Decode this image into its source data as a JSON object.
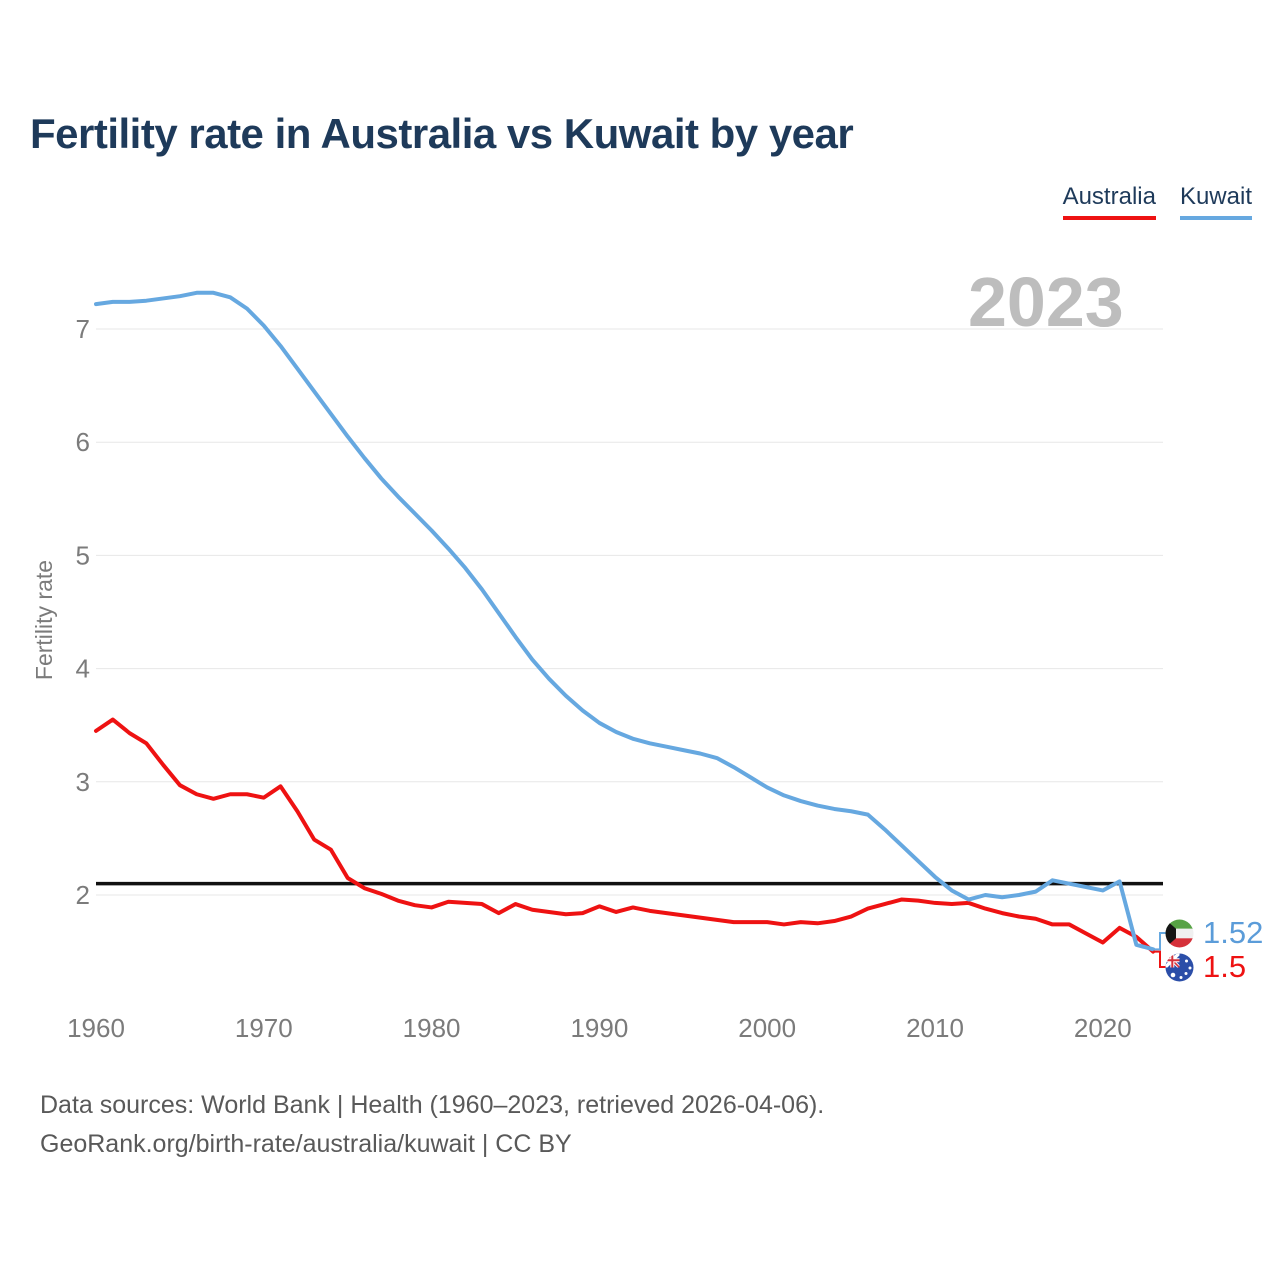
{
  "title": "Fertility rate in Australia vs Kuwait by year",
  "legend": {
    "items": [
      {
        "label": "Australia",
        "color": "#ee1212"
      },
      {
        "label": "Kuwait",
        "color": "#66a8e0"
      }
    ]
  },
  "watermark": "2023",
  "footer": {
    "line1": "Data sources: World Bank | Health (1960–2023, retrieved 2026-04-06).",
    "line2": "GeoRank.org/birth-rate/australia/kuwait | CC BY"
  },
  "chart_data": {
    "type": "line",
    "title": "Fertility rate in Australia vs Kuwait by year",
    "xlabel": "",
    "ylabel": "Fertility rate",
    "grid": true,
    "legend_position": "top-right",
    "ylim": [
      1.3,
      7.6
    ],
    "yticks": [
      2,
      3,
      4,
      5,
      6,
      7
    ],
    "xticks": [
      1960,
      1970,
      1980,
      1990,
      2000,
      2010,
      2020
    ],
    "reference_line": {
      "value": 2.1,
      "color": "#111111"
    },
    "x": [
      1960,
      1961,
      1962,
      1963,
      1964,
      1965,
      1966,
      1967,
      1968,
      1969,
      1970,
      1971,
      1972,
      1973,
      1974,
      1975,
      1976,
      1977,
      1978,
      1979,
      1980,
      1981,
      1982,
      1983,
      1984,
      1985,
      1986,
      1987,
      1988,
      1989,
      1990,
      1991,
      1992,
      1993,
      1994,
      1995,
      1996,
      1997,
      1998,
      1999,
      2000,
      2001,
      2002,
      2003,
      2004,
      2005,
      2006,
      2007,
      2008,
      2009,
      2010,
      2011,
      2012,
      2013,
      2014,
      2015,
      2016,
      2017,
      2018,
      2019,
      2020,
      2021,
      2022,
      2023
    ],
    "series": [
      {
        "name": "Australia",
        "color": "#ee1212",
        "values": [
          3.45,
          3.55,
          3.43,
          3.34,
          3.15,
          2.97,
          2.89,
          2.85,
          2.89,
          2.89,
          2.86,
          2.96,
          2.74,
          2.49,
          2.4,
          2.15,
          2.06,
          2.01,
          1.95,
          1.91,
          1.89,
          1.94,
          1.93,
          1.92,
          1.84,
          1.92,
          1.87,
          1.85,
          1.83,
          1.84,
          1.9,
          1.85,
          1.89,
          1.86,
          1.84,
          1.82,
          1.8,
          1.78,
          1.76,
          1.76,
          1.76,
          1.74,
          1.76,
          1.75,
          1.77,
          1.81,
          1.88,
          1.92,
          1.96,
          1.95,
          1.93,
          1.92,
          1.93,
          1.88,
          1.84,
          1.81,
          1.79,
          1.74,
          1.74,
          1.66,
          1.58,
          1.71,
          1.63,
          1.5
        ]
      },
      {
        "name": "Kuwait",
        "color": "#66a8e0",
        "values": [
          7.22,
          7.24,
          7.24,
          7.25,
          7.27,
          7.29,
          7.32,
          7.32,
          7.28,
          7.18,
          7.03,
          6.85,
          6.65,
          6.45,
          6.25,
          6.05,
          5.86,
          5.68,
          5.52,
          5.37,
          5.22,
          5.06,
          4.89,
          4.7,
          4.49,
          4.28,
          4.08,
          3.91,
          3.76,
          3.63,
          3.52,
          3.44,
          3.38,
          3.34,
          3.31,
          3.28,
          3.25,
          3.21,
          3.13,
          3.04,
          2.95,
          2.88,
          2.83,
          2.79,
          2.76,
          2.74,
          2.71,
          2.58,
          2.44,
          2.3,
          2.16,
          2.04,
          1.96,
          2.0,
          1.98,
          2.0,
          2.03,
          2.13,
          2.1,
          2.07,
          2.04,
          2.12,
          1.56,
          1.52
        ]
      }
    ],
    "end_labels": {
      "kuwait": {
        "value": "1.52",
        "color": "#5b9cd9"
      },
      "australia": {
        "value": "1.5",
        "color": "#ee1212"
      }
    }
  }
}
